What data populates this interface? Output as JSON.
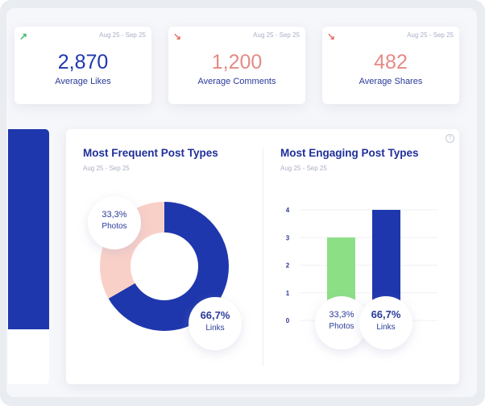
{
  "stats": [
    {
      "label": "Average Likes",
      "value": "2,870",
      "date": "Aug 25 - Sep 25",
      "trend": "up",
      "icon": "arrow-up-right-icon",
      "color": "#1f37ad",
      "arrow_color": "#3dbb6a"
    },
    {
      "label": "Average Comments",
      "value": "1,200",
      "date": "Aug 25 - Sep 25",
      "trend": "down",
      "icon": "arrow-down-right-icon",
      "color": "#e58a85",
      "arrow_color": "#e56f68"
    },
    {
      "label": "Average Shares",
      "value": "482",
      "date": "Aug 25 - Sep 25",
      "trend": "down",
      "icon": "arrow-down-right-icon",
      "color": "#e58a85",
      "arrow_color": "#e56f68"
    }
  ],
  "chart_data": [
    {
      "type": "pie",
      "title": "Most Frequent Post Types",
      "subtitle": "Aug 25 - Sep 25",
      "slices": [
        {
          "name": "Links",
          "value": 66.7,
          "label": "66,7%",
          "color": "#1f37ad"
        },
        {
          "name": "Photos",
          "value": 33.3,
          "label": "33,3%",
          "color": "#f9d0c8"
        }
      ]
    },
    {
      "type": "bar",
      "title": "Most Engaging Post Types",
      "subtitle": "Aug 25 - Sep 25",
      "categories": [
        "Photos",
        "Links"
      ],
      "values": [
        3,
        4
      ],
      "percent_labels": [
        "33,3%",
        "66,7%"
      ],
      "colors": [
        "#8ddf86",
        "#1f37ad"
      ],
      "ylim": [
        0,
        4
      ],
      "yticks": [
        "0",
        "1",
        "2",
        "3",
        "4"
      ]
    }
  ]
}
